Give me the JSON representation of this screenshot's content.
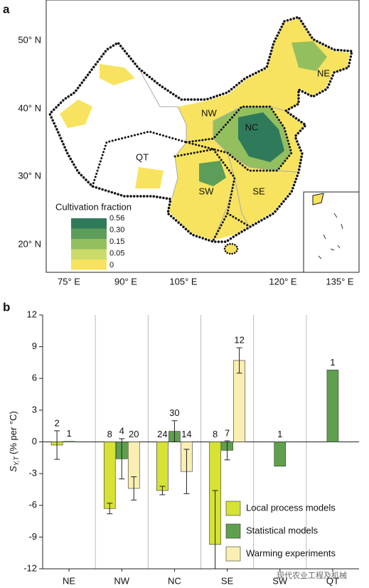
{
  "map": {
    "panel_label": "a",
    "lat_labels": [
      "50° N",
      "40° N",
      "30° N",
      "20° N"
    ],
    "lon_labels": [
      "75° E",
      "90° E",
      "105° E",
      "120° E",
      "135° E"
    ],
    "regions": [
      "NE",
      "NW",
      "NC",
      "QT",
      "SW",
      "SE"
    ],
    "legend_title": "Cultivation fraction",
    "legend_labels": [
      "0.56",
      "0.30",
      "0.15",
      "0.05",
      "0"
    ],
    "legend_colors": [
      "#2f7a5a",
      "#5c9d5a",
      "#93bf5f",
      "#cbdb6a",
      "#f7e35f"
    ]
  },
  "chart_data": {
    "type": "bar",
    "panel_label": "b",
    "ylabel": [
      "S",
      "Y,T",
      "(% per °C)"
    ],
    "categories": [
      "NE",
      "NW",
      "NC",
      "SE",
      "SW",
      "QT"
    ],
    "ylim": [
      -12,
      12
    ],
    "yticks": [
      -12,
      -9,
      -6,
      -3,
      0,
      3,
      6,
      9,
      12
    ],
    "series": [
      {
        "name": "Local process models",
        "color": "#d6e234",
        "values": [
          -0.3,
          -6.3,
          -4.6,
          -9.7,
          null,
          null
        ],
        "errors": [
          1.35,
          0.5,
          0.4,
          5.1,
          null,
          null
        ],
        "n": [
          2,
          8,
          24,
          8,
          null,
          null
        ]
      },
      {
        "name": "Statistical models",
        "color": "#5fa04e",
        "values": [
          0.05,
          -1.6,
          1.0,
          -0.8,
          -2.3,
          6.8
        ],
        "errors": [
          null,
          1.9,
          1.0,
          0.9,
          null,
          null
        ],
        "n": [
          1,
          4,
          30,
          7,
          1,
          1
        ]
      },
      {
        "name": "Warming experiments",
        "color": "#f9efb2",
        "values": [
          null,
          -4.4,
          -2.8,
          7.7,
          null,
          null
        ],
        "errors": [
          null,
          1.1,
          2.1,
          1.2,
          null,
          null
        ],
        "n": [
          null,
          20,
          14,
          12,
          null,
          null
        ]
      }
    ],
    "watermark": "现代农业工程及机械"
  }
}
